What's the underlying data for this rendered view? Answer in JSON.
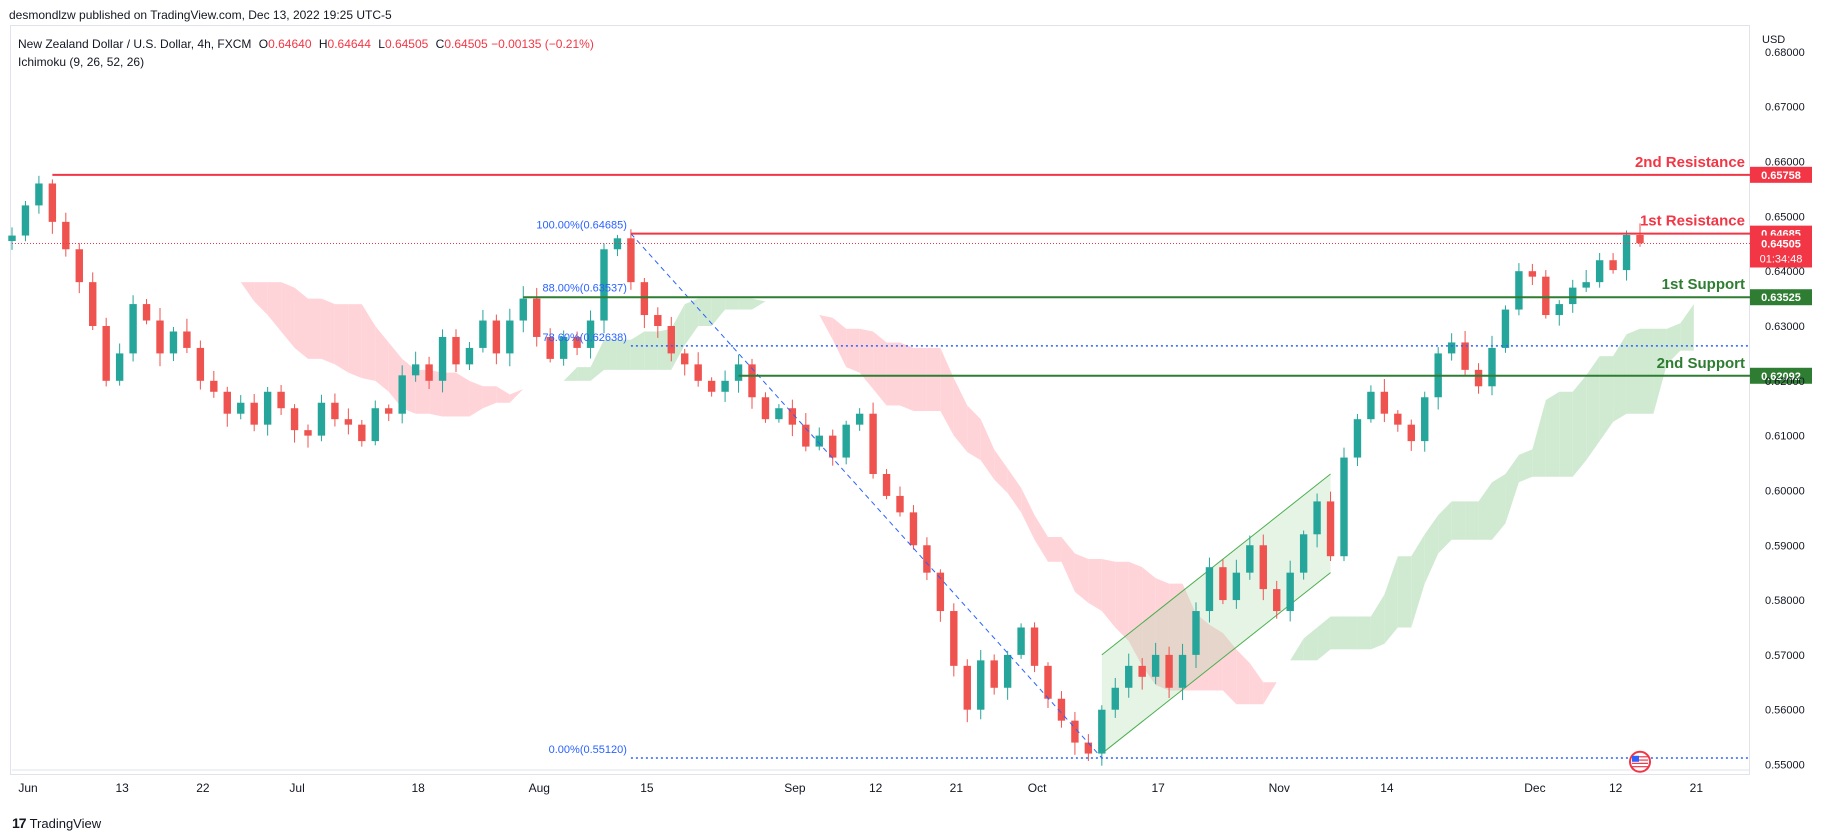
{
  "header": {
    "publisher": "desmondlzw published on TradingView.com, Dec 13, 2022 19:25 UTC-5"
  },
  "legend": {
    "instrument": "New Zealand Dollar / U.S. Dollar, 4h, FXCM",
    "open_key": "O",
    "open": "0.64640",
    "high_key": "H",
    "high": "0.64644",
    "low_key": "L",
    "low": "0.64505",
    "close_key": "C",
    "close": "0.64505",
    "change": "−0.00135 (−0.21%)",
    "indicator": "Ichimoku (9, 26, 52, 26)"
  },
  "axis": {
    "currency": "USD"
  },
  "footer": {
    "brand": "TradingView"
  },
  "colors": {
    "resistance": "#f23645",
    "support": "#2e7d32",
    "fib": "#2962ff",
    "up_candle": "#26a69a",
    "down_candle": "#ef5350",
    "cloud_bull": "#c8e6c9",
    "cloud_bear": "#ffcdd2",
    "channel": "#4caf50"
  },
  "chart_data": {
    "type": "candlestick",
    "symbol": "NZDUSD",
    "timeframe": "4h",
    "ylim": [
      0.549,
      0.684
    ],
    "y_ticks": [
      "0.68000",
      "0.67000",
      "0.66000",
      "0.65000",
      "0.64000",
      "0.63000",
      "0.62000",
      "0.61000",
      "0.60000",
      "0.59000",
      "0.58000",
      "0.57000",
      "0.56000",
      "0.55000"
    ],
    "x_ticks": [
      {
        "label": "Jun",
        "idx": 0
      },
      {
        "label": "13",
        "idx": 7
      },
      {
        "label": "22",
        "idx": 13
      },
      {
        "label": "Jul",
        "idx": 20
      },
      {
        "label": "18",
        "idx": 29
      },
      {
        "label": "Aug",
        "idx": 38
      },
      {
        "label": "15",
        "idx": 46
      },
      {
        "label": "Sep",
        "idx": 57
      },
      {
        "label": "12",
        "idx": 63
      },
      {
        "label": "21",
        "idx": 69
      },
      {
        "label": "Oct",
        "idx": 75
      },
      {
        "label": "17",
        "idx": 84
      },
      {
        "label": "Nov",
        "idx": 93
      },
      {
        "label": "14",
        "idx": 101
      },
      {
        "label": "Dec",
        "idx": 112
      },
      {
        "label": "12",
        "idx": 118
      },
      {
        "label": "21",
        "idx": 124
      }
    ],
    "close": [
      0.6465,
      0.652,
      0.656,
      0.649,
      0.644,
      0.638,
      0.63,
      0.62,
      0.625,
      0.634,
      0.631,
      0.625,
      0.629,
      0.626,
      0.62,
      0.618,
      0.614,
      0.616,
      0.612,
      0.618,
      0.615,
      0.611,
      0.61,
      0.616,
      0.613,
      0.612,
      0.609,
      0.615,
      0.614,
      0.621,
      0.623,
      0.62,
      0.628,
      0.623,
      0.626,
      0.631,
      0.625,
      0.631,
      0.635,
      0.628,
      0.624,
      0.628,
      0.626,
      0.631,
      0.644,
      0.646,
      0.638,
      0.632,
      0.63,
      0.625,
      0.623,
      0.62,
      0.618,
      0.62,
      0.623,
      0.617,
      0.613,
      0.615,
      0.612,
      0.608,
      0.61,
      0.606,
      0.612,
      0.614,
      0.603,
      0.599,
      0.596,
      0.59,
      0.585,
      0.578,
      0.568,
      0.56,
      0.569,
      0.564,
      0.57,
      0.575,
      0.568,
      0.562,
      0.558,
      0.554,
      0.552,
      0.56,
      0.564,
      0.568,
      0.566,
      0.57,
      0.564,
      0.57,
      0.578,
      0.586,
      0.58,
      0.585,
      0.59,
      0.582,
      0.578,
      0.585,
      0.592,
      0.598,
      0.588,
      0.606,
      0.613,
      0.618,
      0.614,
      0.612,
      0.609,
      0.617,
      0.625,
      0.627,
      0.622,
      0.619,
      0.626,
      0.633,
      0.64,
      0.639,
      0.632,
      0.634,
      0.637,
      0.638,
      0.642,
      0.6402,
      0.6466,
      0.6451
    ],
    "current_price": "0.64505",
    "countdown": "01:34:48",
    "levels": [
      {
        "name": "2nd Resistance",
        "value": 0.65758,
        "label": "0.65758",
        "kind": "resistance"
      },
      {
        "name": "1st Resistance",
        "value": 0.64685,
        "label": "0.64685",
        "kind": "resistance"
      },
      {
        "name": "1st Support",
        "value": 0.63525,
        "label": "0.63525",
        "kind": "support"
      },
      {
        "name": "2nd Support",
        "value": 0.62092,
        "label": "0.62092",
        "kind": "support"
      }
    ],
    "fibonacci": [
      {
        "label": "100.00%(0.64685)",
        "ratio": 1.0,
        "value": 0.64685
      },
      {
        "label": "88.00%(0.63537)",
        "ratio": 0.88,
        "value": 0.63537
      },
      {
        "label": "78.60%(0.62638)",
        "ratio": 0.786,
        "value": 0.62638
      },
      {
        "label": "0.00%(0.55120)",
        "ratio": 0.0,
        "value": 0.5512
      }
    ],
    "fib_start_idx": 46,
    "fib_end_idx": 81,
    "channel": {
      "start_idx": 81,
      "end_idx": 98,
      "lower_start": 0.552,
      "lower_end": 0.585,
      "upper_start": 0.57,
      "upper_end": 0.603
    }
  }
}
